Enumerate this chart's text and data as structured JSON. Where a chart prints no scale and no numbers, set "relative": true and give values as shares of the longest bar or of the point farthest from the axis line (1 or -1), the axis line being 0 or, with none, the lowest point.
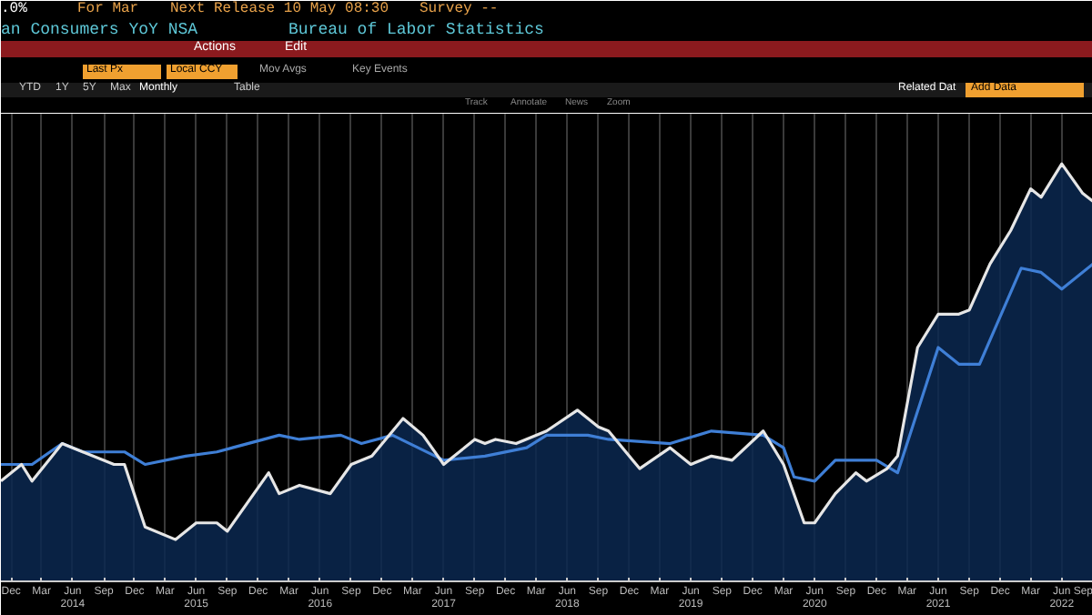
{
  "chart_data": {
    "type": "area",
    "title": "an Consumers YoY NSA",
    "subtitle": "Bureau of Labor Statistics",
    "annotations": [
      ".0%",
      "For Mar",
      "Next Release 10 May 08:30",
      "Survey --",
      "Actions",
      "Edit",
      "Last Px",
      "Local CCY",
      "Mov Avgs",
      "Key Events",
      "YTD",
      "1Y",
      "5Y",
      "Max",
      "Monthly",
      "Table",
      "Related Dat",
      "Add Data",
      "Track",
      "Annotate",
      "News",
      "Zoom"
    ],
    "relative": true,
    "grid": "x",
    "xlim": [
      "2013-11",
      "2022-09"
    ],
    "xticks": [
      {
        "value": "2013-12",
        "label": "Dec"
      },
      {
        "value": "2014-03",
        "label": "Mar"
      },
      {
        "value": "2014-06",
        "label": "Jun\n2014"
      },
      {
        "value": "2014-09",
        "label": "Sep"
      },
      {
        "value": "2014-12",
        "label": "Dec"
      },
      {
        "value": "2015-03",
        "label": "Mar"
      },
      {
        "value": "2015-06",
        "label": "Jun\n2015"
      },
      {
        "value": "2015-09",
        "label": "Sep"
      },
      {
        "value": "2015-12",
        "label": "Dec"
      },
      {
        "value": "2016-03",
        "label": "Mar"
      },
      {
        "value": "2016-06",
        "label": "Jun\n2016"
      },
      {
        "value": "2016-09",
        "label": "Sep"
      },
      {
        "value": "2016-12",
        "label": "Dec"
      },
      {
        "value": "2017-03",
        "label": "Mar"
      },
      {
        "value": "2017-06",
        "label": "Jun\n2017"
      },
      {
        "value": "2017-09",
        "label": "Sep"
      },
      {
        "value": "2017-12",
        "label": "Dec"
      },
      {
        "value": "2018-03",
        "label": "Mar"
      },
      {
        "value": "2018-06",
        "label": "Jun\n2018"
      },
      {
        "value": "2018-09",
        "label": "Sep"
      },
      {
        "value": "2018-12",
        "label": "Dec"
      },
      {
        "value": "2019-03",
        "label": "Mar"
      },
      {
        "value": "2019-06",
        "label": "Jun\n2019"
      },
      {
        "value": "2019-09",
        "label": "Sep"
      },
      {
        "value": "2019-12",
        "label": "Dec"
      },
      {
        "value": "2020-03",
        "label": "Mar"
      },
      {
        "value": "2020-06",
        "label": "Jun\n2020"
      },
      {
        "value": "2020-09",
        "label": "Sep"
      },
      {
        "value": "2020-12",
        "label": "Dec"
      },
      {
        "value": "2021-03",
        "label": "Mar"
      },
      {
        "value": "2021-06",
        "label": "Jun\n2021"
      },
      {
        "value": "2021-09",
        "label": "Sep"
      },
      {
        "value": "2021-12",
        "label": "Dec"
      },
      {
        "value": "2022-03",
        "label": "Mar"
      },
      {
        "value": "2022-06",
        "label": "Jun\n2022"
      },
      {
        "value": "2022-09",
        "label": "Sep"
      }
    ],
    "series": [
      {
        "type": "line",
        "color": "#3f7fd6",
        "x": [
          "2013-11",
          "2014-02",
          "2014-05",
          "2014-07",
          "2014-11",
          "2015-01",
          "2015-05",
          "2015-08",
          "2016-02",
          "2016-04",
          "2016-08",
          "2016-10",
          "2017-01",
          "2017-06",
          "2017-10",
          "2018-02",
          "2018-04",
          "2018-08",
          "2018-10",
          "2019-04",
          "2019-08",
          "2020-01",
          "2020-03",
          "2020-04",
          "2020-06",
          "2020-08",
          "2020-12",
          "2021-02",
          "2021-06",
          "2021-08",
          "2021-10",
          "2022-02",
          "2022-04",
          "2022-06",
          "2022-09"
        ],
        "values": [
          0.28,
          0.28,
          0.33,
          0.31,
          0.31,
          0.28,
          0.3,
          0.31,
          0.35,
          0.34,
          0.35,
          0.33,
          0.35,
          0.29,
          0.3,
          0.32,
          0.35,
          0.35,
          0.34,
          0.33,
          0.36,
          0.35,
          0.32,
          0.25,
          0.24,
          0.29,
          0.29,
          0.26,
          0.56,
          0.52,
          0.52,
          0.75,
          0.74,
          0.7,
          0.76
        ]
      },
      {
        "color": "#e6e6e6",
        "x": [
          "2013-11",
          "2014-01",
          "2014-02",
          "2014-05",
          "2014-06",
          "2014-10",
          "2014-11",
          "2015-01",
          "2015-04",
          "2015-06",
          "2015-08",
          "2015-09",
          "2016-01",
          "2016-02",
          "2016-04",
          "2016-07",
          "2016-09",
          "2016-11",
          "2017-02",
          "2017-04",
          "2017-06",
          "2017-09",
          "2017-10",
          "2017-11",
          "2018-01",
          "2018-04",
          "2018-07",
          "2018-09",
          "2018-10",
          "2019-01",
          "2019-04",
          "2019-06",
          "2019-08",
          "2019-10",
          "2020-01",
          "2020-03",
          "2020-05",
          "2020-06",
          "2020-08",
          "2020-10",
          "2020-11",
          "2021-01",
          "2021-02",
          "2021-04",
          "2021-06",
          "2021-08",
          "2021-09",
          "2021-11",
          "2022-01",
          "2022-03",
          "2022-04",
          "2022-06",
          "2022-08",
          "2022-09"
        ],
        "values": [
          0.24,
          0.28,
          0.24,
          0.33,
          0.32,
          0.28,
          0.28,
          0.13,
          0.1,
          0.14,
          0.14,
          0.12,
          0.26,
          0.21,
          0.23,
          0.21,
          0.28,
          0.3,
          0.39,
          0.35,
          0.28,
          0.34,
          0.33,
          0.34,
          0.33,
          0.36,
          0.41,
          0.37,
          0.36,
          0.27,
          0.32,
          0.28,
          0.3,
          0.29,
          0.36,
          0.28,
          0.14,
          0.14,
          0.21,
          0.26,
          0.24,
          0.27,
          0.3,
          0.56,
          0.64,
          0.64,
          0.65,
          0.76,
          0.84,
          0.94,
          0.92,
          1.0,
          0.93,
          0.91
        ]
      }
    ]
  }
}
